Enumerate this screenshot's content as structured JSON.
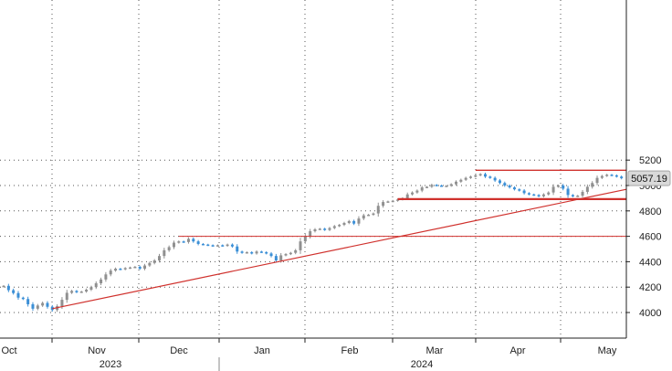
{
  "chart_data": {
    "type": "candlestick",
    "title": "",
    "xlabel": "",
    "ylabel": "",
    "ylim": [
      3900,
      5250
    ],
    "y_ticks": [
      4000,
      4200,
      4400,
      4600,
      4800,
      5000,
      5200
    ],
    "x_tick_labels": [
      "Oct",
      "Nov",
      "Dec",
      "Jan",
      "Feb",
      "Mar",
      "Apr",
      "May"
    ],
    "year_labels": [
      "2023",
      "2024"
    ],
    "grid": "dotted",
    "last_value_label": "5057.19",
    "colors": {
      "up": "#909090",
      "down": "#3b8fd6",
      "annotation": "#d0312d",
      "grid": "#555555"
    },
    "series": [
      {
        "values": [
          {
            "t": 0,
            "c": 4210
          },
          {
            "t": 1,
            "c": 4176
          },
          {
            "t": 2,
            "c": 4153
          },
          {
            "t": 3,
            "c": 4117
          },
          {
            "t": 4,
            "c": 4106
          },
          {
            "t": 5,
            "c": 4065
          },
          {
            "t": 6,
            "c": 4030
          },
          {
            "t": 7,
            "c": 4055
          },
          {
            "t": 8,
            "c": 4075
          },
          {
            "t": 9,
            "c": 4045
          },
          {
            "t": 10,
            "c": 4020
          },
          {
            "t": 11,
            "c": 4050
          },
          {
            "t": 12,
            "c": 4100
          },
          {
            "t": 13,
            "c": 4155
          },
          {
            "t": 14,
            "c": 4170
          },
          {
            "t": 15,
            "c": 4160
          },
          {
            "t": 16,
            "c": 4165
          },
          {
            "t": 17,
            "c": 4180
          },
          {
            "t": 18,
            "c": 4200
          },
          {
            "t": 19,
            "c": 4230
          },
          {
            "t": 20,
            "c": 4260
          },
          {
            "t": 21,
            "c": 4300
          },
          {
            "t": 22,
            "c": 4330
          },
          {
            "t": 23,
            "c": 4345
          },
          {
            "t": 24,
            "c": 4340
          },
          {
            "t": 25,
            "c": 4350
          },
          {
            "t": 26,
            "c": 4355
          },
          {
            "t": 27,
            "c": 4360
          },
          {
            "t": 28,
            "c": 4345
          },
          {
            "t": 29,
            "c": 4370
          },
          {
            "t": 30,
            "c": 4390
          },
          {
            "t": 31,
            "c": 4410
          },
          {
            "t": 32,
            "c": 4445
          },
          {
            "t": 33,
            "c": 4490
          },
          {
            "t": 34,
            "c": 4515
          },
          {
            "t": 35,
            "c": 4550
          },
          {
            "t": 36,
            "c": 4560
          },
          {
            "t": 37,
            "c": 4555
          },
          {
            "t": 38,
            "c": 4580
          },
          {
            "t": 39,
            "c": 4560
          },
          {
            "t": 40,
            "c": 4540
          },
          {
            "t": 41,
            "c": 4535
          },
          {
            "t": 42,
            "c": 4530
          },
          {
            "t": 43,
            "c": 4525
          },
          {
            "t": 44,
            "c": 4530
          },
          {
            "t": 45,
            "c": 4525
          },
          {
            "t": 46,
            "c": 4535
          },
          {
            "t": 47,
            "c": 4520
          },
          {
            "t": 48,
            "c": 4480
          },
          {
            "t": 49,
            "c": 4470
          },
          {
            "t": 50,
            "c": 4475
          },
          {
            "t": 51,
            "c": 4465
          },
          {
            "t": 52,
            "c": 4480
          },
          {
            "t": 53,
            "c": 4475
          },
          {
            "t": 54,
            "c": 4465
          },
          {
            "t": 55,
            "c": 4445
          },
          {
            "t": 56,
            "c": 4410
          },
          {
            "t": 57,
            "c": 4450
          },
          {
            "t": 58,
            "c": 4460
          },
          {
            "t": 59,
            "c": 4470
          },
          {
            "t": 60,
            "c": 4490
          },
          {
            "t": 61,
            "c": 4560
          },
          {
            "t": 62,
            "c": 4600
          },
          {
            "t": 63,
            "c": 4640
          },
          {
            "t": 64,
            "c": 4655
          },
          {
            "t": 65,
            "c": 4660
          },
          {
            "t": 66,
            "c": 4650
          },
          {
            "t": 67,
            "c": 4665
          },
          {
            "t": 68,
            "c": 4680
          },
          {
            "t": 69,
            "c": 4690
          },
          {
            "t": 70,
            "c": 4705
          },
          {
            "t": 71,
            "c": 4720
          },
          {
            "t": 72,
            "c": 4700
          },
          {
            "t": 73,
            "c": 4740
          },
          {
            "t": 74,
            "c": 4765
          },
          {
            "t": 75,
            "c": 4770
          },
          {
            "t": 76,
            "c": 4780
          },
          {
            "t": 77,
            "c": 4840
          },
          {
            "t": 78,
            "c": 4870
          },
          {
            "t": 79,
            "c": 4875
          },
          {
            "t": 80,
            "c": 4880
          },
          {
            "t": 81,
            "c": 4890
          },
          {
            "t": 82,
            "c": 4900
          },
          {
            "t": 83,
            "c": 4930
          },
          {
            "t": 84,
            "c": 4945
          },
          {
            "t": 85,
            "c": 4960
          },
          {
            "t": 86,
            "c": 4985
          },
          {
            "t": 87,
            "c": 4990
          },
          {
            "t": 88,
            "c": 5005
          },
          {
            "t": 89,
            "c": 5000
          },
          {
            "t": 90,
            "c": 4995
          },
          {
            "t": 91,
            "c": 4998
          },
          {
            "t": 92,
            "c": 5010
          },
          {
            "t": 93,
            "c": 5030
          },
          {
            "t": 94,
            "c": 5045
          },
          {
            "t": 95,
            "c": 5060
          },
          {
            "t": 96,
            "c": 5070
          },
          {
            "t": 97,
            "c": 5080
          },
          {
            "t": 98,
            "c": 5090
          },
          {
            "t": 99,
            "c": 5070
          },
          {
            "t": 100,
            "c": 5060
          },
          {
            "t": 101,
            "c": 5040
          },
          {
            "t": 102,
            "c": 5020
          },
          {
            "t": 103,
            "c": 5000
          },
          {
            "t": 104,
            "c": 4985
          },
          {
            "t": 105,
            "c": 4970
          },
          {
            "t": 106,
            "c": 4960
          },
          {
            "t": 107,
            "c": 4940
          },
          {
            "t": 108,
            "c": 4930
          },
          {
            "t": 109,
            "c": 4925
          },
          {
            "t": 110,
            "c": 4915
          },
          {
            "t": 111,
            "c": 4930
          },
          {
            "t": 112,
            "c": 4945
          },
          {
            "t": 113,
            "c": 4990
          },
          {
            "t": 114,
            "c": 5000
          },
          {
            "t": 115,
            "c": 4975
          },
          {
            "t": 116,
            "c": 4925
          },
          {
            "t": 117,
            "c": 4915
          },
          {
            "t": 118,
            "c": 4920
          },
          {
            "t": 119,
            "c": 4950
          },
          {
            "t": 120,
            "c": 4990
          },
          {
            "t": 121,
            "c": 5020
          },
          {
            "t": 122,
            "c": 5060
          },
          {
            "t": 123,
            "c": 5075
          },
          {
            "t": 124,
            "c": 5085
          },
          {
            "t": 125,
            "c": 5080
          },
          {
            "t": 126,
            "c": 5070
          },
          {
            "t": 127,
            "c": 5057
          }
        ]
      }
    ],
    "annotations": {
      "hlines": [
        {
          "y": 4600,
          "from": 36,
          "to": 128,
          "weight": "thin"
        },
        {
          "y": 4893,
          "from": 81,
          "to": 128,
          "weight": "thick"
        },
        {
          "y": 5120,
          "from": 97,
          "to": 128,
          "weight": "medium"
        }
      ],
      "trendline": {
        "from": {
          "t": 10,
          "y": 4030
        },
        "to": {
          "t": 128,
          "y": 4970
        }
      }
    }
  }
}
